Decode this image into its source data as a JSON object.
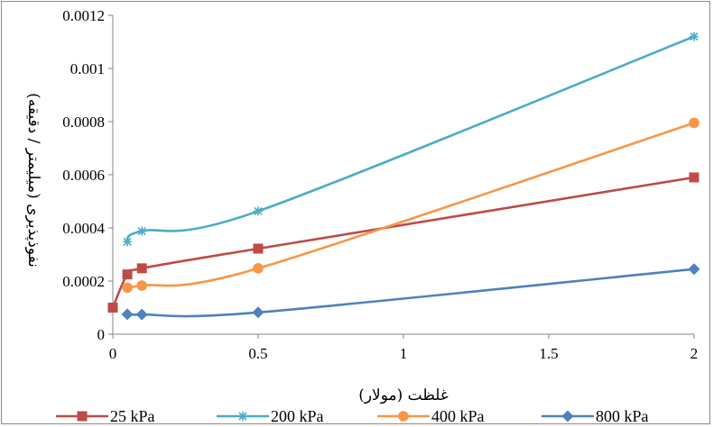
{
  "chart_data": {
    "type": "line",
    "xlabel": "غلظت (مولار)",
    "ylabel": "نفوذپذیری (میلیمتر / دقیقه)",
    "xlim": [
      0,
      2
    ],
    "ylim": [
      0,
      0.0012
    ],
    "x_ticks": [
      "0",
      "0.5",
      "1",
      "1.5",
      "2"
    ],
    "y_ticks": [
      "0",
      "0.0002",
      "0.0004",
      "0.0006",
      "0.0008",
      "0.001",
      "0.0012"
    ],
    "legend_position": "bottom",
    "grid": false,
    "series": [
      {
        "name": "25 kPa",
        "color": "#be4b48",
        "marker": "square",
        "x": [
          0,
          0.05,
          0.1,
          0.5,
          2
        ],
        "y": [
          0.0001,
          0.000225,
          0.000248,
          0.000322,
          0.00059
        ]
      },
      {
        "name": "200 kPa",
        "color": "#4bacc6",
        "marker": "star",
        "x": [
          0.05,
          0.1,
          0.5,
          2
        ],
        "y": [
          0.000348,
          0.000388,
          0.000463,
          0.00112
        ]
      },
      {
        "name": "400 kPa",
        "color": "#f79646",
        "marker": "circle",
        "x": [
          0.05,
          0.1,
          0.5,
          2
        ],
        "y": [
          0.000175,
          0.000183,
          0.000248,
          0.000795
        ]
      },
      {
        "name": "800 kPa",
        "color": "#4f81bd",
        "marker": "diamond",
        "x": [
          0.05,
          0.1,
          0.5,
          2
        ],
        "y": [
          7.5e-05,
          7.4e-05,
          8.2e-05,
          0.000245
        ]
      }
    ]
  }
}
